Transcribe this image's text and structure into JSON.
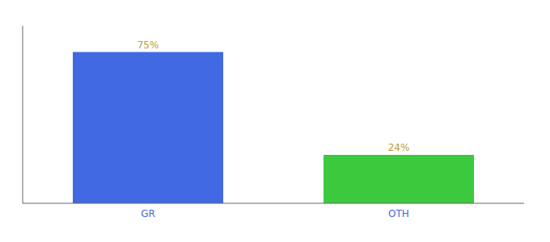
{
  "chart_data": {
    "type": "bar",
    "categories": [
      "GR",
      "OTH"
    ],
    "values": [
      75,
      24
    ],
    "value_labels": [
      "75%",
      "24%"
    ],
    "colors": [
      "#4169e1",
      "#3dc93d"
    ],
    "ylim": [
      0,
      88
    ],
    "data_labels": true,
    "tick_labels": "x",
    "grid": false
  }
}
